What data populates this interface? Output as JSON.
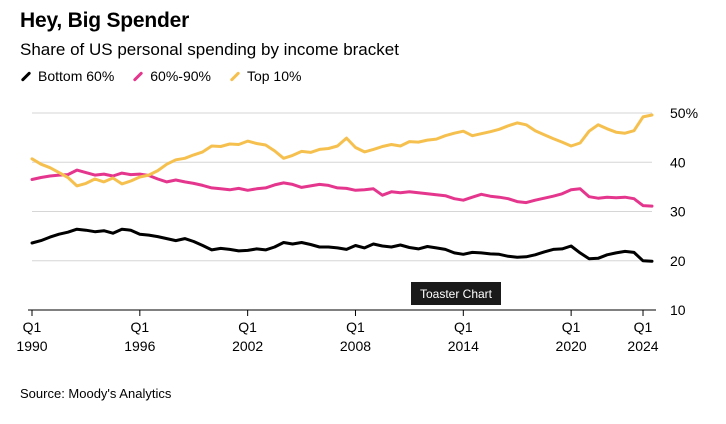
{
  "chart_data": {
    "type": "line",
    "title": "Hey, Big Spender",
    "subtitle": "Share of US personal spending by income bracket",
    "source": "Source: Moody's Analytics",
    "badge": "Toaster Chart",
    "legend_position": "top-left",
    "grid": true,
    "ylim": [
      10,
      50
    ],
    "y_ticks": [
      {
        "value": 50,
        "label": "50%"
      },
      {
        "value": 40,
        "label": "40"
      },
      {
        "value": 30,
        "label": "30"
      },
      {
        "value": 20,
        "label": "20"
      },
      {
        "value": 10,
        "label": "10"
      }
    ],
    "xlim": [
      1990.0,
      2024.5
    ],
    "x_ticks": [
      {
        "value": 1990,
        "line1": "Q1",
        "line2": "1990"
      },
      {
        "value": 1996,
        "line1": "Q1",
        "line2": "1996"
      },
      {
        "value": 2002,
        "line1": "Q1",
        "line2": "2002"
      },
      {
        "value": 2008,
        "line1": "Q1",
        "line2": "2008"
      },
      {
        "value": 2014,
        "line1": "Q1",
        "line2": "2014"
      },
      {
        "value": 2020,
        "line1": "Q1",
        "line2": "2020"
      },
      {
        "value": 2024,
        "line1": "Q1",
        "line2": "2024"
      }
    ],
    "series": [
      {
        "name": "Bottom 60%",
        "color": "#000000",
        "points": [
          [
            1990.0,
            23.6
          ],
          [
            1990.5,
            24.1
          ],
          [
            1991.0,
            24.8
          ],
          [
            1991.5,
            25.4
          ],
          [
            1992.0,
            25.8
          ],
          [
            1992.5,
            26.4
          ],
          [
            1993.0,
            26.2
          ],
          [
            1993.5,
            25.9
          ],
          [
            1994.0,
            26.1
          ],
          [
            1994.5,
            25.6
          ],
          [
            1995.0,
            26.4
          ],
          [
            1995.5,
            26.2
          ],
          [
            1996.0,
            25.4
          ],
          [
            1996.5,
            25.2
          ],
          [
            1997.0,
            24.9
          ],
          [
            1997.5,
            24.5
          ],
          [
            1998.0,
            24.1
          ],
          [
            1998.5,
            24.5
          ],
          [
            1999.0,
            23.9
          ],
          [
            1999.5,
            23.1
          ],
          [
            2000.0,
            22.2
          ],
          [
            2000.5,
            22.5
          ],
          [
            2001.0,
            22.3
          ],
          [
            2001.5,
            22.0
          ],
          [
            2002.0,
            22.1
          ],
          [
            2002.5,
            22.4
          ],
          [
            2003.0,
            22.2
          ],
          [
            2003.5,
            22.8
          ],
          [
            2004.0,
            23.7
          ],
          [
            2004.5,
            23.4
          ],
          [
            2005.0,
            23.7
          ],
          [
            2005.5,
            23.3
          ],
          [
            2006.0,
            22.8
          ],
          [
            2006.5,
            22.8
          ],
          [
            2007.0,
            22.6
          ],
          [
            2007.5,
            22.3
          ],
          [
            2008.0,
            23.1
          ],
          [
            2008.5,
            22.6
          ],
          [
            2009.0,
            23.4
          ],
          [
            2009.5,
            23.0
          ],
          [
            2010.0,
            22.8
          ],
          [
            2010.5,
            23.2
          ],
          [
            2011.0,
            22.7
          ],
          [
            2011.5,
            22.4
          ],
          [
            2012.0,
            22.9
          ],
          [
            2012.5,
            22.6
          ],
          [
            2013.0,
            22.3
          ],
          [
            2013.5,
            21.6
          ],
          [
            2014.0,
            21.3
          ],
          [
            2014.5,
            21.7
          ],
          [
            2015.0,
            21.6
          ],
          [
            2015.5,
            21.4
          ],
          [
            2016.0,
            21.3
          ],
          [
            2016.5,
            20.9
          ],
          [
            2017.0,
            20.7
          ],
          [
            2017.5,
            20.8
          ],
          [
            2018.0,
            21.2
          ],
          [
            2018.5,
            21.8
          ],
          [
            2019.0,
            22.3
          ],
          [
            2019.5,
            22.4
          ],
          [
            2020.0,
            23.0
          ],
          [
            2020.5,
            21.6
          ],
          [
            2021.0,
            20.4
          ],
          [
            2021.5,
            20.5
          ],
          [
            2022.0,
            21.2
          ],
          [
            2022.5,
            21.6
          ],
          [
            2023.0,
            21.9
          ],
          [
            2023.5,
            21.7
          ],
          [
            2024.0,
            20.0
          ],
          [
            2024.5,
            19.9
          ]
        ]
      },
      {
        "name": "60%-90%",
        "color": "#e5368e",
        "points": [
          [
            1990.0,
            36.5
          ],
          [
            1990.5,
            36.9
          ],
          [
            1991.0,
            37.2
          ],
          [
            1991.5,
            37.4
          ],
          [
            1992.0,
            37.5
          ],
          [
            1992.5,
            38.4
          ],
          [
            1993.0,
            37.9
          ],
          [
            1993.5,
            37.4
          ],
          [
            1994.0,
            37.6
          ],
          [
            1994.5,
            37.2
          ],
          [
            1995.0,
            37.8
          ],
          [
            1995.5,
            37.5
          ],
          [
            1996.0,
            37.6
          ],
          [
            1996.5,
            37.3
          ],
          [
            1997.0,
            36.6
          ],
          [
            1997.5,
            36.0
          ],
          [
            1998.0,
            36.4
          ],
          [
            1998.5,
            36.0
          ],
          [
            1999.0,
            35.7
          ],
          [
            1999.5,
            35.3
          ],
          [
            2000.0,
            34.8
          ],
          [
            2000.5,
            34.6
          ],
          [
            2001.0,
            34.4
          ],
          [
            2001.5,
            34.7
          ],
          [
            2002.0,
            34.3
          ],
          [
            2002.5,
            34.6
          ],
          [
            2003.0,
            34.8
          ],
          [
            2003.5,
            35.4
          ],
          [
            2004.0,
            35.8
          ],
          [
            2004.5,
            35.5
          ],
          [
            2005.0,
            34.9
          ],
          [
            2005.5,
            35.2
          ],
          [
            2006.0,
            35.5
          ],
          [
            2006.5,
            35.3
          ],
          [
            2007.0,
            34.8
          ],
          [
            2007.5,
            34.7
          ],
          [
            2008.0,
            34.3
          ],
          [
            2008.5,
            34.4
          ],
          [
            2009.0,
            34.6
          ],
          [
            2009.5,
            33.3
          ],
          [
            2010.0,
            34.0
          ],
          [
            2010.5,
            33.8
          ],
          [
            2011.0,
            34.0
          ],
          [
            2011.5,
            33.8
          ],
          [
            2012.0,
            33.6
          ],
          [
            2012.5,
            33.4
          ],
          [
            2013.0,
            33.2
          ],
          [
            2013.5,
            32.6
          ],
          [
            2014.0,
            32.3
          ],
          [
            2014.5,
            32.9
          ],
          [
            2015.0,
            33.5
          ],
          [
            2015.5,
            33.1
          ],
          [
            2016.0,
            32.9
          ],
          [
            2016.5,
            32.6
          ],
          [
            2017.0,
            32.0
          ],
          [
            2017.5,
            31.8
          ],
          [
            2018.0,
            32.3
          ],
          [
            2018.5,
            32.7
          ],
          [
            2019.0,
            33.1
          ],
          [
            2019.5,
            33.6
          ],
          [
            2020.0,
            34.4
          ],
          [
            2020.5,
            34.6
          ],
          [
            2021.0,
            33.0
          ],
          [
            2021.5,
            32.7
          ],
          [
            2022.0,
            32.9
          ],
          [
            2022.5,
            32.8
          ],
          [
            2023.0,
            32.9
          ],
          [
            2023.5,
            32.6
          ],
          [
            2024.0,
            31.2
          ],
          [
            2024.5,
            31.1
          ]
        ]
      },
      {
        "name": "Top 10%",
        "color": "#f6c04f",
        "points": [
          [
            1990.0,
            40.7
          ],
          [
            1990.5,
            39.6
          ],
          [
            1991.0,
            38.9
          ],
          [
            1991.5,
            37.9
          ],
          [
            1992.0,
            36.9
          ],
          [
            1992.5,
            35.2
          ],
          [
            1993.0,
            35.7
          ],
          [
            1993.5,
            36.6
          ],
          [
            1994.0,
            36.0
          ],
          [
            1994.5,
            36.8
          ],
          [
            1995.0,
            35.6
          ],
          [
            1995.5,
            36.2
          ],
          [
            1996.0,
            37.0
          ],
          [
            1996.5,
            37.4
          ],
          [
            1997.0,
            38.3
          ],
          [
            1997.5,
            39.6
          ],
          [
            1998.0,
            40.5
          ],
          [
            1998.5,
            40.8
          ],
          [
            1999.0,
            41.5
          ],
          [
            1999.5,
            42.1
          ],
          [
            2000.0,
            43.3
          ],
          [
            2000.5,
            43.2
          ],
          [
            2001.0,
            43.7
          ],
          [
            2001.5,
            43.6
          ],
          [
            2002.0,
            44.3
          ],
          [
            2002.5,
            43.8
          ],
          [
            2003.0,
            43.5
          ],
          [
            2003.5,
            42.3
          ],
          [
            2004.0,
            40.8
          ],
          [
            2004.5,
            41.4
          ],
          [
            2005.0,
            42.2
          ],
          [
            2005.5,
            42.0
          ],
          [
            2006.0,
            42.6
          ],
          [
            2006.5,
            42.8
          ],
          [
            2007.0,
            43.3
          ],
          [
            2007.5,
            44.9
          ],
          [
            2008.0,
            43.0
          ],
          [
            2008.5,
            42.1
          ],
          [
            2009.0,
            42.6
          ],
          [
            2009.5,
            43.2
          ],
          [
            2010.0,
            43.6
          ],
          [
            2010.5,
            43.3
          ],
          [
            2011.0,
            44.2
          ],
          [
            2011.5,
            44.1
          ],
          [
            2012.0,
            44.5
          ],
          [
            2012.5,
            44.7
          ],
          [
            2013.0,
            45.4
          ],
          [
            2013.5,
            45.9
          ],
          [
            2014.0,
            46.3
          ],
          [
            2014.5,
            45.4
          ],
          [
            2015.0,
            45.8
          ],
          [
            2015.5,
            46.2
          ],
          [
            2016.0,
            46.7
          ],
          [
            2016.5,
            47.4
          ],
          [
            2017.0,
            48.0
          ],
          [
            2017.5,
            47.6
          ],
          [
            2018.0,
            46.4
          ],
          [
            2018.5,
            45.6
          ],
          [
            2019.0,
            44.8
          ],
          [
            2019.5,
            44.1
          ],
          [
            2020.0,
            43.3
          ],
          [
            2020.5,
            43.9
          ],
          [
            2021.0,
            46.3
          ],
          [
            2021.5,
            47.6
          ],
          [
            2022.0,
            46.8
          ],
          [
            2022.5,
            46.1
          ],
          [
            2023.0,
            45.9
          ],
          [
            2023.5,
            46.4
          ],
          [
            2024.0,
            49.2
          ],
          [
            2024.5,
            49.6
          ]
        ]
      }
    ]
  }
}
